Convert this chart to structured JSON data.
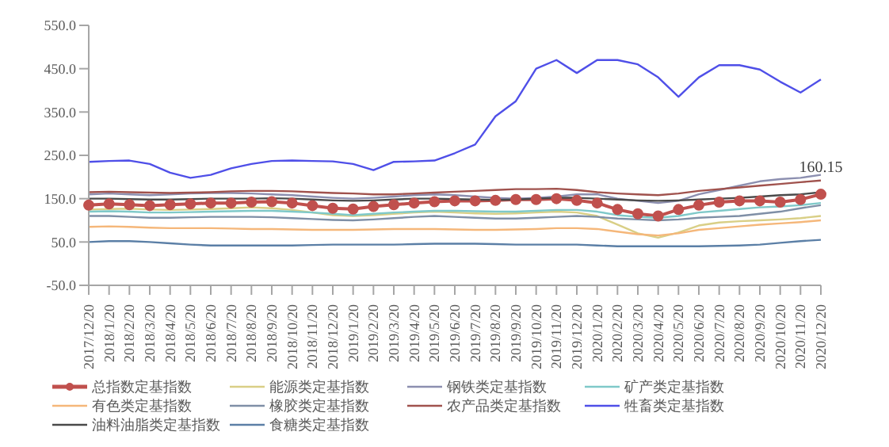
{
  "chart_data": {
    "type": "line",
    "categories": [
      "2017/12/20",
      "2018/1/20",
      "2018/2/20",
      "2018/3/20",
      "2018/4/20",
      "2018/5/20",
      "2018/6/20",
      "2018/7/20",
      "2018/8/20",
      "2018/9/20",
      "2018/10/20",
      "2018/11/20",
      "2018/12/20",
      "2019/1/20",
      "2019/2/20",
      "2019/3/20",
      "2019/4/20",
      "2019/5/20",
      "2019/6/20",
      "2019/7/20",
      "2019/8/20",
      "2019/9/20",
      "2019/10/20",
      "2019/11/20",
      "2019/12/20",
      "2020/1/20",
      "2020/2/20",
      "2020/3/20",
      "2020/4/20",
      "2020/5/20",
      "2020/6/20",
      "2020/7/20",
      "2020/8/20",
      "2020/9/20",
      "2020/10/20",
      "2020/11/20",
      "2020/12/20"
    ],
    "ylim": [
      -50,
      550
    ],
    "yticks": [
      {
        "value": -50,
        "label": "-50.0"
      },
      {
        "value": 50,
        "label": "50.0"
      },
      {
        "value": 150,
        "label": "150.0"
      },
      {
        "value": 250,
        "label": "250.0"
      },
      {
        "value": 350,
        "label": "350.0"
      },
      {
        "value": 450,
        "label": "450.0"
      },
      {
        "value": 550,
        "label": "550.0"
      }
    ],
    "grid": false,
    "legend": "bottom",
    "line_style": "solid",
    "series": [
      {
        "name": "总指数定基指数",
        "color": "#c0504d",
        "marker": "circle",
        "values": [
          135,
          138,
          136,
          134,
          136,
          138,
          140,
          140,
          142,
          143,
          140,
          134,
          128,
          126,
          132,
          136,
          140,
          143,
          145,
          145,
          146,
          148,
          148,
          150,
          146,
          140,
          125,
          115,
          110,
          125,
          135,
          142,
          145,
          145,
          142,
          148,
          160.15
        ],
        "value_labels": [
          null,
          null,
          null,
          null,
          null,
          null,
          null,
          null,
          null,
          null,
          null,
          null,
          null,
          null,
          null,
          null,
          null,
          null,
          null,
          null,
          null,
          null,
          null,
          null,
          null,
          null,
          null,
          null,
          null,
          null,
          null,
          null,
          null,
          null,
          null,
          null,
          "160.15"
        ]
      },
      {
        "name": "能源类定基指数",
        "color": "#d9cf86",
        "values": [
          125,
          126,
          127,
          125,
          124,
          125,
          126,
          128,
          130,
          128,
          124,
          118,
          112,
          110,
          112,
          115,
          118,
          120,
          118,
          116,
          115,
          116,
          118,
          120,
          118,
          110,
          90,
          70,
          60,
          72,
          88,
          95,
          98,
          100,
          102,
          105,
          110
        ]
      },
      {
        "name": "钢铁类定基指数",
        "color": "#8c8fb0",
        "values": [
          160,
          162,
          160,
          158,
          160,
          162,
          163,
          163,
          162,
          160,
          158,
          155,
          152,
          150,
          152,
          155,
          158,
          160,
          158,
          155,
          152,
          150,
          152,
          155,
          160,
          160,
          150,
          145,
          140,
          145,
          160,
          170,
          180,
          190,
          195,
          198,
          205
        ]
      },
      {
        "name": "矿产类定基指数",
        "color": "#7fc9c9",
        "values": [
          120,
          121,
          120,
          118,
          118,
          119,
          120,
          121,
          122,
          122,
          120,
          118,
          115,
          112,
          115,
          118,
          120,
          122,
          122,
          121,
          120,
          120,
          122,
          124,
          124,
          120,
          112,
          108,
          106,
          110,
          118,
          122,
          126,
          130,
          132,
          135,
          140
        ]
      },
      {
        "name": "有色类定基指数",
        "color": "#f5b77a",
        "values": [
          85,
          86,
          85,
          83,
          82,
          82,
          82,
          81,
          80,
          80,
          79,
          78,
          78,
          78,
          79,
          80,
          80,
          80,
          79,
          78,
          78,
          79,
          80,
          82,
          82,
          80,
          74,
          68,
          65,
          70,
          78,
          82,
          86,
          90,
          93,
          96,
          100
        ]
      },
      {
        "name": "橡胶类定基指数",
        "color": "#7f8fa6",
        "values": [
          110,
          110,
          108,
          106,
          106,
          107,
          108,
          108,
          108,
          107,
          105,
          103,
          101,
          100,
          102,
          105,
          108,
          110,
          108,
          106,
          104,
          104,
          106,
          108,
          110,
          108,
          104,
          102,
          100,
          102,
          106,
          108,
          110,
          115,
          120,
          128,
          135
        ]
      },
      {
        "name": "农产品类定基指数",
        "color": "#a0524d",
        "values": [
          165,
          166,
          165,
          164,
          163,
          164,
          165,
          167,
          168,
          168,
          167,
          165,
          163,
          162,
          160,
          160,
          162,
          164,
          166,
          168,
          170,
          172,
          172,
          173,
          170,
          165,
          162,
          160,
          158,
          162,
          168,
          172,
          176,
          180,
          184,
          188,
          192
        ]
      },
      {
        "name": "牲畜类定基指数",
        "color": "#4f4fe8",
        "values": [
          235,
          237,
          238,
          230,
          210,
          198,
          205,
          220,
          230,
          237,
          238,
          237,
          236,
          230,
          216,
          235,
          236,
          238,
          255,
          275,
          340,
          375,
          450,
          470,
          440,
          470,
          470,
          460,
          430,
          385,
          430,
          458,
          458,
          448,
          420,
          395,
          425
        ]
      },
      {
        "name": "油料油脂类定基指数",
        "color": "#4a4a4a",
        "values": [
          150,
          150,
          149,
          148,
          148,
          149,
          150,
          150,
          150,
          151,
          150,
          148,
          146,
          145,
          146,
          148,
          150,
          150,
          149,
          148,
          147,
          148,
          150,
          152,
          152,
          150,
          148,
          146,
          145,
          146,
          148,
          150,
          152,
          155,
          158,
          160,
          165
        ]
      },
      {
        "name": "食糖类定基指数",
        "color": "#5b7fa6",
        "values": [
          50,
          52,
          52,
          50,
          47,
          44,
          42,
          42,
          42,
          42,
          42,
          43,
          44,
          44,
          44,
          44,
          45,
          46,
          46,
          46,
          45,
          44,
          44,
          44,
          44,
          42,
          40,
          40,
          40,
          40,
          40,
          41,
          42,
          44,
          48,
          52,
          55
        ]
      }
    ]
  }
}
